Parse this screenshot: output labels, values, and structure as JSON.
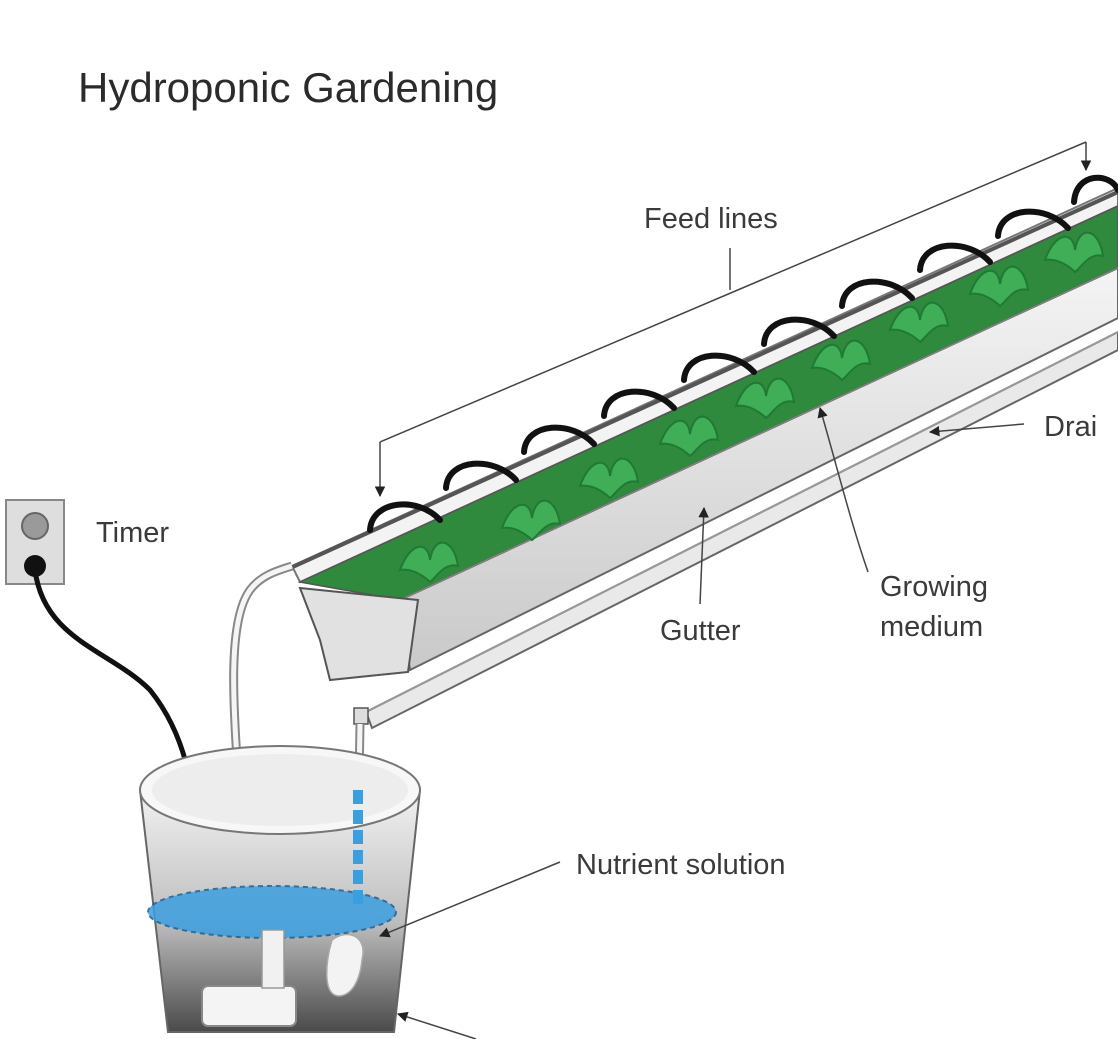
{
  "title": "Hydroponic Gardening",
  "labels": {
    "feed_lines": "Feed lines",
    "drain": "Drai",
    "timer": "Timer",
    "gutter": "Gutter",
    "growing_medium_line1": "Growing",
    "growing_medium_line2": "medium",
    "nutrient_solution": "Nutrient solution"
  },
  "colors": {
    "plant": "#3fae57",
    "plant_dark": "#1f7a34",
    "solution": "#3a9fe0",
    "tube": "#111111",
    "gutter": "#e4e4e4",
    "background": "#ffffff"
  }
}
